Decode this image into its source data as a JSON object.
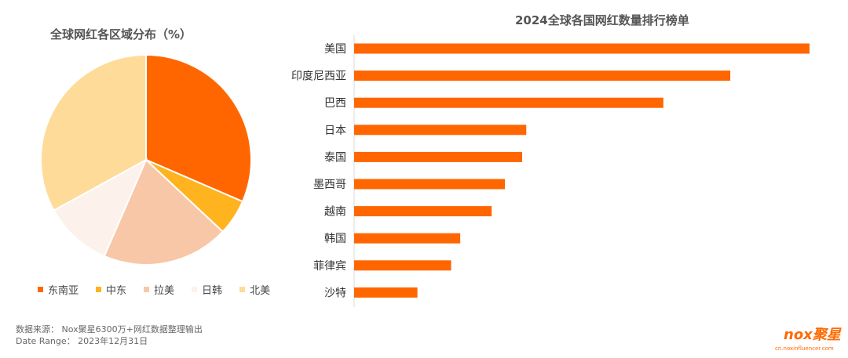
{
  "pie_title": "全球网红各区域分布（%）",
  "bar_title": "2024全球各国网红数量排行榜单",
  "source_line1": "数据来源： Nox聚星6300万+网红数据整理输出",
  "source_line2": "Date Range： 2023年12月31日",
  "logo": {
    "word": "nox聚星",
    "url": "cn.noxinfluencer.com"
  },
  "colors": {
    "accent": "#ff6600"
  },
  "chart_data": [
    {
      "type": "pie",
      "title": "全球网红各区域分布（%）",
      "legend_position": "bottom",
      "labels": [
        "东南亚",
        "中东",
        "拉美",
        "日韩",
        "北美"
      ],
      "values": [
        31.5,
        5.5,
        19.5,
        10.5,
        33
      ],
      "colors": [
        "#ff6600",
        "#ffb31f",
        "#f8c7a7",
        "#fdf1ec",
        "#fedb98"
      ]
    },
    {
      "type": "bar",
      "orientation": "horizontal",
      "title": "2024全球各国网红数量排行榜单",
      "categories": [
        "美国",
        "印度尼西亚",
        "巴西",
        "日本",
        "泰国",
        "墨西哥",
        "越南",
        "韩国",
        "菲律宾",
        "沙特"
      ],
      "values": [
        100,
        82.6,
        67.9,
        37.8,
        36.9,
        33.1,
        30.2,
        23.3,
        21.3,
        13.9
      ],
      "color": "#ff6600",
      "grid": false
    }
  ]
}
